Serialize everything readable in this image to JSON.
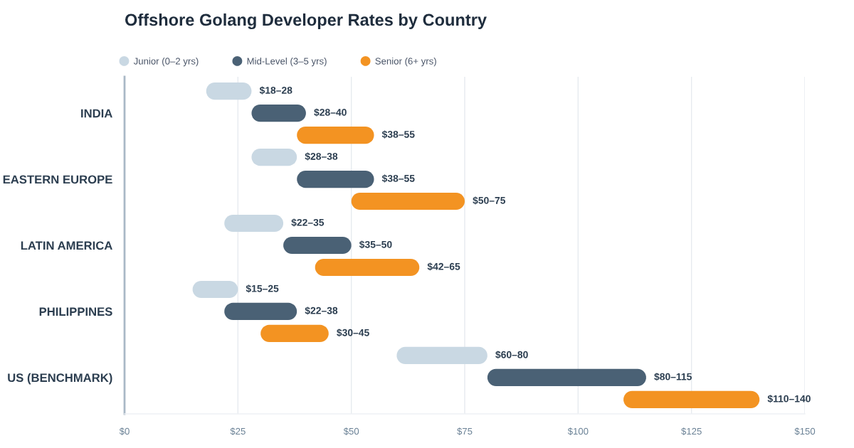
{
  "chart_data": {
    "type": "bar",
    "orientation": "horizontal",
    "title": "Offshore Golang Developer Rates by Country",
    "categories": [
      "INDIA",
      "EASTERN EUROPE",
      "LATIN AMERICA",
      "PHILIPPINES",
      "US (BENCHMARK)"
    ],
    "series": [
      {
        "name": "Junior (0–2 yrs)",
        "color": "#c9d8e3",
        "base": [
          18,
          28,
          22,
          15,
          60
        ],
        "values": [
          10,
          10,
          13,
          10,
          20
        ],
        "value_labels": [
          "$18–28",
          "$28–38",
          "$22–35",
          "$15–25",
          "$60–80"
        ]
      },
      {
        "name": "Mid-Level (3–5 yrs)",
        "color": "#4a6175",
        "base": [
          28,
          38,
          35,
          22,
          80
        ],
        "values": [
          12,
          17,
          15,
          16,
          35
        ],
        "value_labels": [
          "$28–40",
          "$38–55",
          "$35–50",
          "$22–38",
          "$80–115"
        ]
      },
      {
        "name": "Senior (6+ yrs)",
        "color": "#f39322",
        "base": [
          38,
          50,
          42,
          30,
          110
        ],
        "values": [
          17,
          25,
          23,
          15,
          30
        ],
        "value_labels": [
          "$38–55",
          "$50–75",
          "$42–65",
          "$30–45",
          "$110–140"
        ]
      }
    ],
    "xlim": [
      0,
      150
    ],
    "xticks": [
      {
        "value": 0,
        "label": "$0"
      },
      {
        "value": 25,
        "label": "$25"
      },
      {
        "value": 50,
        "label": "$50"
      },
      {
        "value": 75,
        "label": "$75"
      },
      {
        "value": 100,
        "label": "$100"
      },
      {
        "value": 125,
        "label": "$125"
      },
      {
        "value": 150,
        "label": "$150"
      }
    ],
    "grid": "x",
    "legend": "top left"
  }
}
